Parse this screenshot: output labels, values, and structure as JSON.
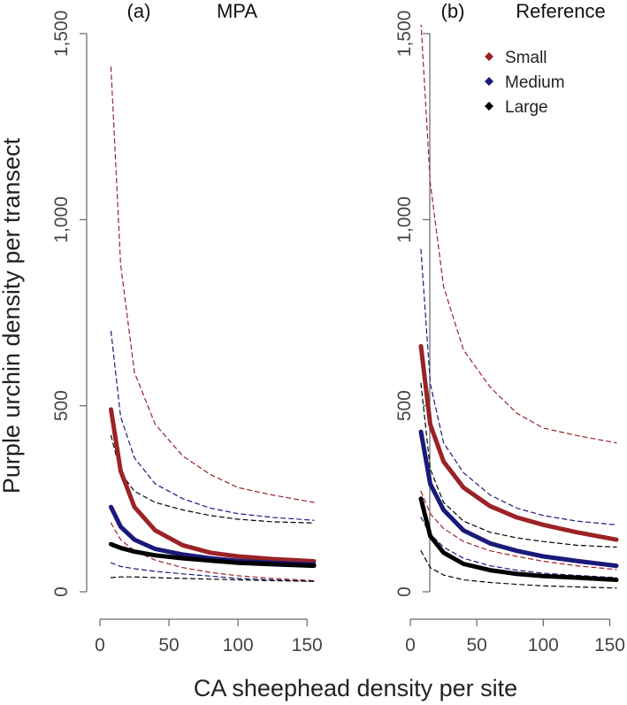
{
  "chart_data": {
    "type": "line",
    "xlabel": "CA sheephead density per site",
    "ylabel": "Purple urchin density per transect",
    "xlim": [
      0,
      155
    ],
    "ylim": [
      0,
      1500
    ],
    "xticks": [
      0,
      50,
      100,
      150
    ],
    "yticks": [
      0,
      500,
      1000,
      1500
    ],
    "ytick_labels": [
      "0",
      "500",
      "1,000",
      "1,500"
    ],
    "grid": false,
    "legend": {
      "placement": "top-right of panel (b)",
      "entries": [
        {
          "label": "Small",
          "color": "#9b2226"
        },
        {
          "label": "Medium",
          "color": "#1a1a7a"
        },
        {
          "label": "Large",
          "color": "#000000"
        }
      ]
    },
    "panels": [
      {
        "tag": "(a)",
        "title": "MPA",
        "x": [
          8,
          15,
          25,
          40,
          60,
          80,
          100,
          125,
          155
        ],
        "series": [
          {
            "name": "Small",
            "color": "#9b2226",
            "fit": [
              490,
              325,
              228,
              165,
              125,
              105,
              95,
              88,
              82
            ],
            "upper": [
              1410,
              880,
              590,
              450,
              365,
              315,
              280,
              260,
              240
            ],
            "lower": [
              185,
              140,
              110,
              85,
              65,
              52,
              43,
              36,
              30
            ]
          },
          {
            "name": "Medium",
            "color": "#1a1a7a",
            "fit": [
              228,
              175,
              140,
              115,
              100,
              90,
              83,
              78,
              73
            ],
            "upper": [
              700,
              470,
              360,
              290,
              250,
              225,
              210,
              200,
              192
            ],
            "lower": [
              78,
              68,
              62,
              55,
              48,
              42,
              36,
              32,
              28
            ]
          },
          {
            "name": "Large",
            "color": "#000000",
            "fit": [
              128,
              118,
              108,
              98,
              90,
              84,
              78,
              74,
              70
            ],
            "upper": [
              420,
              320,
              270,
              240,
              220,
              205,
              195,
              188,
              185
            ],
            "lower": [
              38,
              40,
              40,
              38,
              36,
              34,
              32,
              30,
              28
            ]
          }
        ]
      },
      {
        "tag": "(b)",
        "title": "Reference",
        "x": [
          8,
          15,
          25,
          40,
          60,
          80,
          100,
          125,
          155
        ],
        "series": [
          {
            "name": "Small",
            "color": "#9b2226",
            "fit": [
              660,
              450,
              350,
              280,
              230,
              200,
              180,
              160,
              140
            ],
            "upper": [
              1530,
              1100,
              820,
              650,
              550,
              480,
              440,
              420,
              400
            ],
            "lower": [
              270,
              210,
              170,
              135,
              110,
              95,
              82,
              70,
              60
            ]
          },
          {
            "name": "Medium",
            "color": "#1a1a7a",
            "fit": [
              430,
              290,
              220,
              165,
              130,
              110,
              95,
              83,
              70
            ],
            "upper": [
              920,
              560,
              400,
              320,
              260,
              225,
              205,
              190,
              180
            ],
            "lower": [
              200,
              155,
              120,
              90,
              70,
              58,
              50,
              44,
              38
            ]
          },
          {
            "name": "Large",
            "color": "#000000",
            "fit": [
              250,
              150,
              105,
              75,
              58,
              48,
              42,
              38,
              32
            ],
            "upper": [
              560,
              330,
              240,
              190,
              160,
              145,
              135,
              125,
              120
            ],
            "lower": [
              110,
              65,
              45,
              32,
              25,
              20,
              16,
              13,
              10
            ]
          }
        ]
      }
    ]
  }
}
